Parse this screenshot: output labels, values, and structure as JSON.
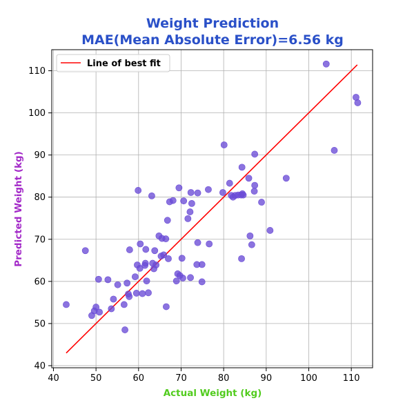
{
  "chart_data": {
    "type": "scatter",
    "title": "Weight Prediction",
    "subtitle": "MAE(Mean Absolute Error)=6.56 kg",
    "xlabel": "Actual Weight (kg)",
    "ylabel": "Predicted Weight (kg)",
    "xlim": [
      39.6,
      115
    ],
    "ylim": [
      39.5,
      115
    ],
    "xticks": [
      40,
      50,
      60,
      70,
      80,
      90,
      100,
      110
    ],
    "yticks": [
      40,
      50,
      60,
      70,
      80,
      90,
      100,
      110
    ],
    "grid": true,
    "legend": {
      "placement": "top-left",
      "entries": [
        "Line of best fit"
      ]
    },
    "best_fit_line": {
      "name": "Line of best fit",
      "x": [
        43,
        111.4
      ],
      "y": [
        43,
        111.4
      ]
    },
    "series": [
      {
        "points": [
          [
            43,
            54.5
          ],
          [
            47.5,
            67.3
          ],
          [
            49,
            51.9
          ],
          [
            49.6,
            53
          ],
          [
            50,
            53.9
          ],
          [
            50.6,
            60.5
          ],
          [
            50.8,
            52.7
          ],
          [
            52.8,
            60.4
          ],
          [
            53.6,
            53.5
          ],
          [
            54.1,
            55.8
          ],
          [
            55.1,
            59.2
          ],
          [
            56.6,
            54.5
          ],
          [
            56.8,
            48.5
          ],
          [
            57.3,
            59.6
          ],
          [
            57.6,
            57
          ],
          [
            57.8,
            56.4
          ],
          [
            57.9,
            67.5
          ],
          [
            59.2,
            61.1
          ],
          [
            59.5,
            57.2
          ],
          [
            59.7,
            63.9
          ],
          [
            59.9,
            81.6
          ],
          [
            60.3,
            63.1
          ],
          [
            60.4,
            68.9
          ],
          [
            60.9,
            57.1
          ],
          [
            61.5,
            63.8
          ],
          [
            61.6,
            64.3
          ],
          [
            61.7,
            67.6
          ],
          [
            61.9,
            60.1
          ],
          [
            62.3,
            57.3
          ],
          [
            63.1,
            80.3
          ],
          [
            63.3,
            64.3
          ],
          [
            63.6,
            63
          ],
          [
            63.8,
            67.3
          ],
          [
            64.1,
            63.9
          ],
          [
            64.8,
            70.8
          ],
          [
            65.3,
            66
          ],
          [
            65.5,
            70.2
          ],
          [
            65.9,
            66.3
          ],
          [
            66.4,
            70.1
          ],
          [
            66.5,
            54
          ],
          [
            66.8,
            74.5
          ],
          [
            67,
            65.4
          ],
          [
            67.3,
            78.9
          ],
          [
            68.1,
            79.2
          ],
          [
            68.9,
            60.1
          ],
          [
            69.2,
            61.8
          ],
          [
            69.5,
            82.2
          ],
          [
            69.7,
            61.4
          ],
          [
            70.2,
            65.5
          ],
          [
            70.4,
            60.8
          ],
          [
            70.6,
            79.1
          ],
          [
            71.6,
            74.9
          ],
          [
            72.1,
            76.5
          ],
          [
            72.2,
            60.9
          ],
          [
            72.3,
            81.1
          ],
          [
            72.5,
            78.5
          ],
          [
            73.7,
            64
          ],
          [
            73.9,
            81
          ],
          [
            73.9,
            69.2
          ],
          [
            74.9,
            64
          ],
          [
            74.9,
            59.9
          ],
          [
            76.4,
            81.8
          ],
          [
            76.6,
            68.9
          ],
          [
            79.8,
            81.1
          ],
          [
            80.1,
            92.4
          ],
          [
            81.4,
            83.3
          ],
          [
            81.8,
            80.4
          ],
          [
            82.2,
            80
          ],
          [
            82.7,
            80.4
          ],
          [
            83.4,
            80.5
          ],
          [
            84.1,
            80.5
          ],
          [
            84.2,
            65.4
          ],
          [
            84.3,
            87.1
          ],
          [
            84.4,
            80.8
          ],
          [
            84.6,
            80.5
          ],
          [
            85.9,
            84.5
          ],
          [
            86.2,
            70.8
          ],
          [
            86.6,
            68.7
          ],
          [
            87.2,
            81.4
          ],
          [
            87.3,
            82.8
          ],
          [
            87.3,
            90.2
          ],
          [
            88.9,
            78.8
          ],
          [
            90.9,
            72.1
          ],
          [
            94.7,
            84.5
          ],
          [
            104.1,
            111.6
          ],
          [
            106,
            91.1
          ],
          [
            111.1,
            103.7
          ],
          [
            111.5,
            102.4
          ]
        ]
      }
    ],
    "colors": {
      "title": "#2a50c8",
      "xlabel": "#52cc1f",
      "ylabel": "#a32ac8",
      "points": "#6a4bd6",
      "line": "#ff0000",
      "grid": "#b0b0b0"
    }
  }
}
